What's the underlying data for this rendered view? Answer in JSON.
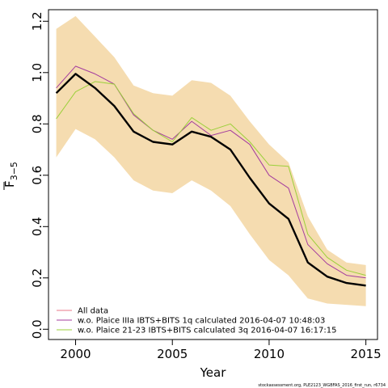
{
  "chart_data": {
    "type": "line",
    "xlabel": "Year",
    "ylabel": "F",
    "ylabel_subscript": "3−5",
    "xlim": [
      1998.6,
      2015.6
    ],
    "ylim": [
      -0.04,
      1.245
    ],
    "x_ticks": [
      2000,
      2005,
      2010,
      2015
    ],
    "y_ticks": [
      0.0,
      0.2,
      0.4,
      0.6,
      0.8,
      1.0,
      1.2
    ],
    "y_tick_labels": [
      "0.0",
      "0.2",
      "0.4",
      "0.6",
      "0.8",
      "1.0",
      "1.2"
    ],
    "x": [
      1999,
      2000,
      2001,
      2002,
      2003,
      2004,
      2005,
      2006,
      2007,
      2008,
      2009,
      2010,
      2011,
      2012,
      2013,
      2014,
      2015
    ],
    "band": {
      "color": "#f5dcb0",
      "lower": [
        0.67,
        0.78,
        0.74,
        0.67,
        0.58,
        0.54,
        0.53,
        0.58,
        0.54,
        0.48,
        0.37,
        0.27,
        0.21,
        0.12,
        0.1,
        0.095,
        0.09
      ],
      "upper": [
        1.17,
        1.22,
        1.14,
        1.06,
        0.95,
        0.92,
        0.91,
        0.97,
        0.96,
        0.91,
        0.81,
        0.72,
        0.65,
        0.44,
        0.31,
        0.26,
        0.25
      ]
    },
    "series": [
      {
        "name": "All data",
        "color": "#000000",
        "legend_color": "#e8798a",
        "width": 2.4,
        "values": [
          0.92,
          0.995,
          0.94,
          0.87,
          0.77,
          0.73,
          0.72,
          0.77,
          0.75,
          0.7,
          0.59,
          0.49,
          0.43,
          0.26,
          0.205,
          0.18,
          0.17
        ]
      },
      {
        "name": "w.o. Plaice IIIa IBTS+BITS 1q calculated 2016-04-07 10:48:03",
        "color": "#a43c9e",
        "legend_color": "#a43c9e",
        "width": 1,
        "values": [
          0.94,
          1.025,
          0.995,
          0.955,
          0.835,
          0.775,
          0.74,
          0.81,
          0.755,
          0.775,
          0.72,
          0.6,
          0.55,
          0.33,
          0.255,
          0.21,
          0.2
        ]
      },
      {
        "name": "w.o. Plaice 21-23 IBTS+BITS calculated 3q 2016-04-07 16:17:15",
        "color": "#9bd03a",
        "legend_color": "#9bd03a",
        "width": 1,
        "values": [
          0.82,
          0.925,
          0.965,
          0.955,
          0.84,
          0.775,
          0.73,
          0.825,
          0.775,
          0.8,
          0.73,
          0.64,
          0.635,
          0.37,
          0.28,
          0.23,
          0.21
        ]
      }
    ],
    "legend_position": "bottom-left",
    "grid": false
  },
  "footer": {
    "note": "stockassessment.org, PLE2123_WGBFAS_2016_first_run, r6734"
  }
}
